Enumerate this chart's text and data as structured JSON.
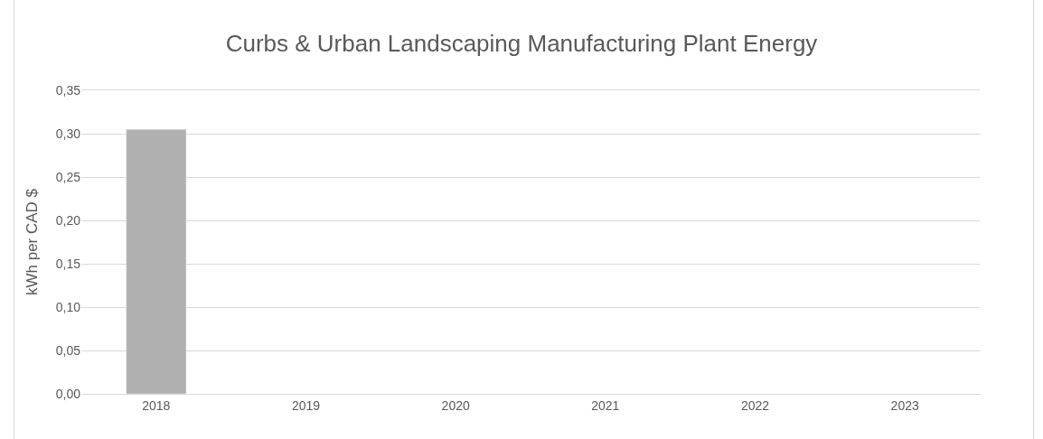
{
  "chart_data": {
    "type": "bar",
    "title": "Curbs & Urban Landscaping Manufacturing Plant Energy",
    "ylabel": "kWh per CAD $",
    "categories": [
      "2018",
      "2019",
      "2020",
      "2021",
      "2022",
      "2023"
    ],
    "values": [
      0.305,
      null,
      null,
      null,
      null,
      null
    ],
    "color": "#b0b0b0",
    "ylim": [
      0,
      0.35
    ],
    "yticks": [
      {
        "value": 0,
        "label": "0,00"
      },
      {
        "value": 0.05,
        "label": "0,05"
      },
      {
        "value": 0.1,
        "label": "0,10"
      },
      {
        "value": 0.15,
        "label": "0,15"
      },
      {
        "value": 0.2,
        "label": "0,20"
      },
      {
        "value": 0.25,
        "label": "0,25"
      },
      {
        "value": 0.3,
        "label": "0,30"
      },
      {
        "value": 0.35,
        "label": "0,35"
      }
    ],
    "grid": "y"
  }
}
